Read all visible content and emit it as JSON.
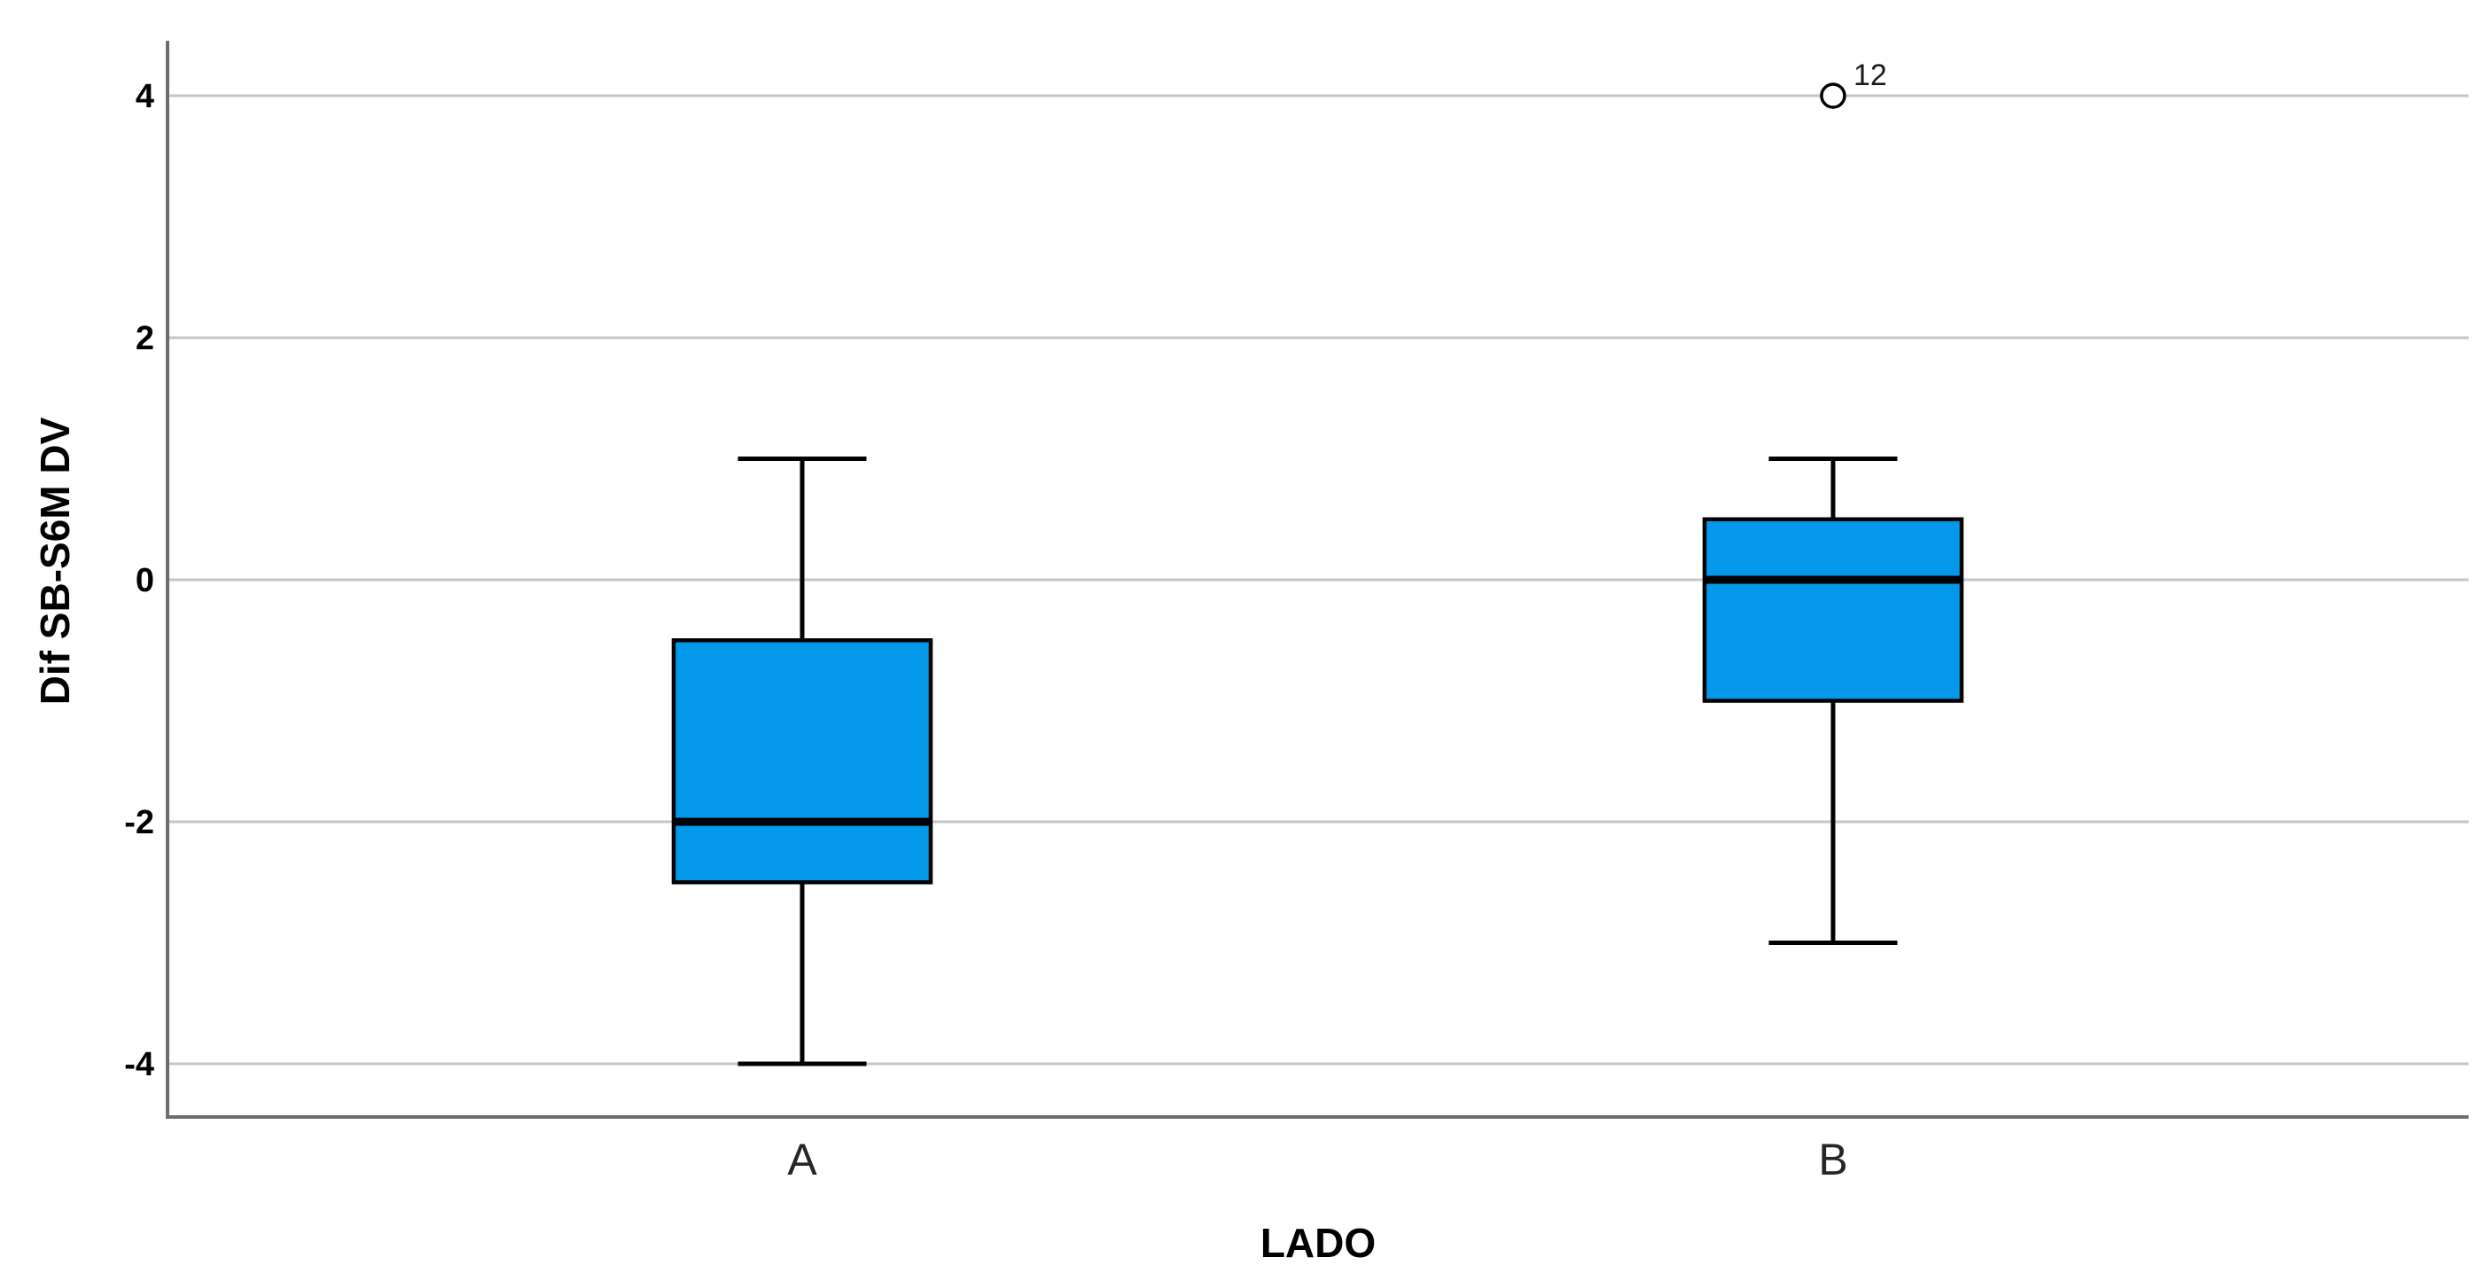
{
  "chart_data": {
    "type": "boxplot",
    "title": "",
    "xlabel": "LADO",
    "ylabel": "Dif SB-S6M DV",
    "categories": [
      "A",
      "B"
    ],
    "ylim": [
      -4.45,
      4.45
    ],
    "yticks": [
      4,
      2,
      0,
      -2,
      -4
    ],
    "ytick_labels": [
      "4",
      "2",
      "0",
      "-2",
      "-4"
    ],
    "grid": true,
    "legend_position": "none",
    "orientation": "vertical",
    "series": [
      {
        "category": "A",
        "whisker_low": -4,
        "q1": -2.5,
        "median": -2,
        "q3": -0.5,
        "whisker_high": 1,
        "outliers": []
      },
      {
        "category": "B",
        "whisker_low": -3,
        "q1": -1,
        "median": 0,
        "q3": 0.5,
        "whisker_high": 1,
        "outliers": [
          {
            "value": 4,
            "label": "12",
            "marker": "open-circle"
          }
        ]
      }
    ],
    "colors": {
      "box_fill": "#0398E9",
      "box_border": "#000000",
      "median_line": "#000000",
      "whisker": "#000000",
      "gridline": "#C6C6C6",
      "axis_line": "#6E6E6E",
      "tick_label": "#000000",
      "category_label": "#262626",
      "background": "#FFFFFF"
    }
  }
}
